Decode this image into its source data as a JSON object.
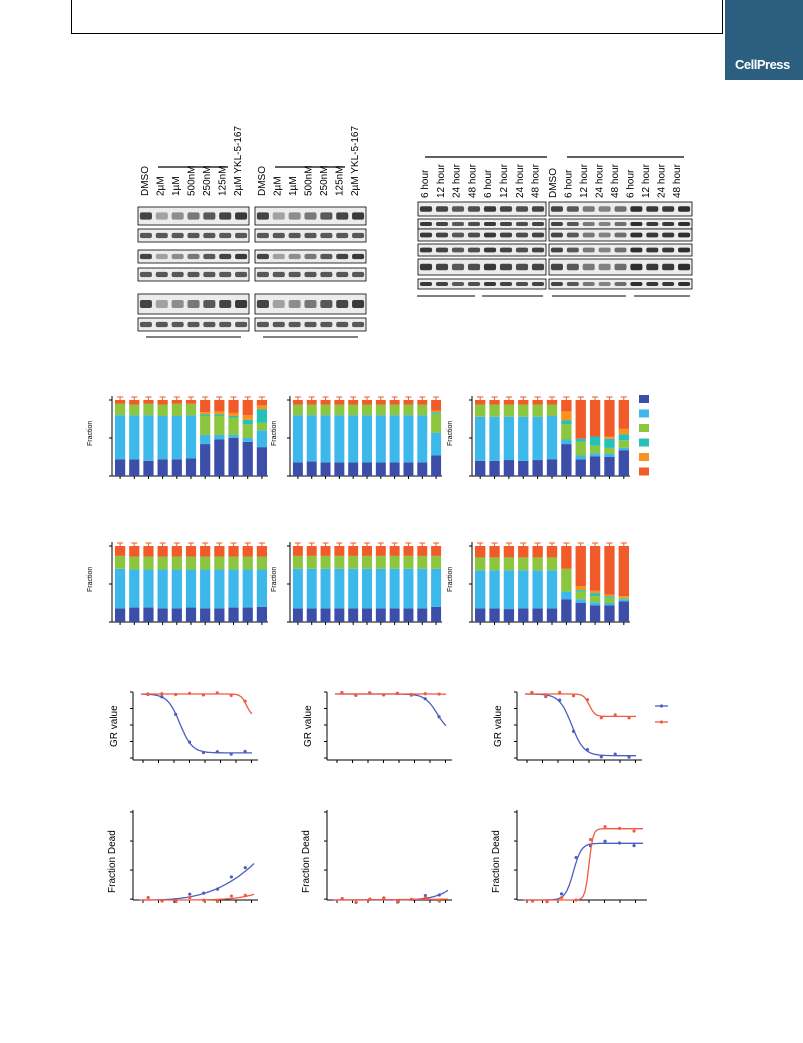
{
  "header": {
    "brand": "CellPress"
  },
  "westernA": {
    "lanes": [
      "DMSO",
      "2µM",
      "1µM",
      "500nM",
      "250nM",
      "125nM",
      "2µM YKL-5-167"
    ]
  },
  "westernB": {
    "left_lanes": [
      "6 hour",
      "12 hour",
      "24 hour",
      "48 hour",
      "6 hour",
      "12 hour",
      "24 hour",
      "48 hour"
    ],
    "right_lanes": [
      "DMSO",
      "6 hour",
      "12 hour",
      "24 hour",
      "48 hour",
      "6 hour",
      "12 hour",
      "24 hour",
      "48 hour"
    ]
  },
  "cellcycle": {
    "ylabel": "Fraction",
    "colors": [
      "#3d4ea8",
      "#3cb8ea",
      "#8cc63f",
      "#25c1b8",
      "#f7931e",
      "#f15a29"
    ],
    "panels": [
      {
        "bars": [
          [
            0.22,
            0.58,
            0.15,
            0.0,
            0.0,
            0.05
          ],
          [
            0.22,
            0.58,
            0.14,
            0.0,
            0.0,
            0.06
          ],
          [
            0.2,
            0.6,
            0.15,
            0.0,
            0.0,
            0.05
          ],
          [
            0.22,
            0.57,
            0.15,
            0.0,
            0.0,
            0.06
          ],
          [
            0.22,
            0.57,
            0.16,
            0.0,
            0.0,
            0.05
          ],
          [
            0.23,
            0.57,
            0.15,
            0.0,
            0.0,
            0.05
          ],
          [
            0.42,
            0.12,
            0.25,
            0.02,
            0.03,
            0.16
          ],
          [
            0.48,
            0.06,
            0.25,
            0.02,
            0.04,
            0.15
          ],
          [
            0.5,
            0.04,
            0.23,
            0.02,
            0.04,
            0.17
          ],
          [
            0.45,
            0.05,
            0.18,
            0.06,
            0.06,
            0.2
          ],
          [
            0.38,
            0.22,
            0.1,
            0.18,
            0.05,
            0.07
          ]
        ]
      },
      {
        "bars": [
          [
            0.18,
            0.62,
            0.14,
            0.0,
            0.0,
            0.06
          ],
          [
            0.19,
            0.61,
            0.14,
            0.0,
            0.0,
            0.06
          ],
          [
            0.18,
            0.62,
            0.14,
            0.0,
            0.0,
            0.06
          ],
          [
            0.18,
            0.62,
            0.14,
            0.0,
            0.0,
            0.06
          ],
          [
            0.18,
            0.62,
            0.14,
            0.0,
            0.0,
            0.06
          ],
          [
            0.18,
            0.62,
            0.14,
            0.0,
            0.0,
            0.06
          ],
          [
            0.18,
            0.62,
            0.14,
            0.0,
            0.0,
            0.06
          ],
          [
            0.18,
            0.62,
            0.14,
            0.0,
            0.0,
            0.06
          ],
          [
            0.18,
            0.62,
            0.14,
            0.0,
            0.0,
            0.06
          ],
          [
            0.18,
            0.62,
            0.14,
            0.0,
            0.0,
            0.06
          ],
          [
            0.27,
            0.3,
            0.25,
            0.02,
            0.02,
            0.14
          ]
        ]
      },
      {
        "bars": [
          [
            0.2,
            0.58,
            0.16,
            0.0,
            0.0,
            0.06
          ],
          [
            0.2,
            0.58,
            0.16,
            0.0,
            0.0,
            0.06
          ],
          [
            0.21,
            0.57,
            0.16,
            0.0,
            0.0,
            0.06
          ],
          [
            0.2,
            0.58,
            0.16,
            0.0,
            0.0,
            0.06
          ],
          [
            0.21,
            0.57,
            0.16,
            0.0,
            0.0,
            0.06
          ],
          [
            0.22,
            0.57,
            0.15,
            0.0,
            0.0,
            0.06
          ],
          [
            0.42,
            0.06,
            0.2,
            0.05,
            0.12,
            0.15
          ],
          [
            0.22,
            0.05,
            0.18,
            0.04,
            0.0,
            0.51
          ],
          [
            0.26,
            0.04,
            0.1,
            0.12,
            0.0,
            0.48
          ],
          [
            0.25,
            0.04,
            0.08,
            0.12,
            0.03,
            0.48
          ],
          [
            0.34,
            0.03,
            0.1,
            0.08,
            0.07,
            0.38
          ]
        ]
      },
      {
        "bars": [
          [
            0.18,
            0.52,
            0.17,
            0.0,
            0.0,
            0.13
          ],
          [
            0.19,
            0.5,
            0.17,
            0.0,
            0.0,
            0.14
          ],
          [
            0.19,
            0.5,
            0.17,
            0.0,
            0.0,
            0.14
          ],
          [
            0.18,
            0.51,
            0.17,
            0.0,
            0.0,
            0.14
          ],
          [
            0.18,
            0.51,
            0.17,
            0.0,
            0.0,
            0.14
          ],
          [
            0.19,
            0.5,
            0.17,
            0.0,
            0.0,
            0.14
          ],
          [
            0.18,
            0.51,
            0.17,
            0.0,
            0.0,
            0.14
          ],
          [
            0.18,
            0.51,
            0.17,
            0.0,
            0.0,
            0.14
          ],
          [
            0.19,
            0.5,
            0.17,
            0.0,
            0.0,
            0.14
          ],
          [
            0.19,
            0.5,
            0.17,
            0.0,
            0.0,
            0.14
          ],
          [
            0.2,
            0.49,
            0.17,
            0.0,
            0.0,
            0.14
          ]
        ]
      },
      {
        "bars": [
          [
            0.18,
            0.52,
            0.17,
            0.0,
            0.0,
            0.13
          ],
          [
            0.18,
            0.52,
            0.17,
            0.0,
            0.0,
            0.13
          ],
          [
            0.18,
            0.52,
            0.17,
            0.0,
            0.0,
            0.13
          ],
          [
            0.18,
            0.52,
            0.17,
            0.0,
            0.0,
            0.13
          ],
          [
            0.18,
            0.52,
            0.17,
            0.0,
            0.0,
            0.13
          ],
          [
            0.18,
            0.52,
            0.17,
            0.0,
            0.0,
            0.13
          ],
          [
            0.18,
            0.52,
            0.17,
            0.0,
            0.0,
            0.13
          ],
          [
            0.18,
            0.52,
            0.17,
            0.0,
            0.0,
            0.13
          ],
          [
            0.18,
            0.52,
            0.17,
            0.0,
            0.0,
            0.13
          ],
          [
            0.18,
            0.52,
            0.17,
            0.0,
            0.0,
            0.13
          ],
          [
            0.2,
            0.5,
            0.17,
            0.0,
            0.0,
            0.13
          ]
        ]
      },
      {
        "bars": [
          [
            0.18,
            0.5,
            0.17,
            0.0,
            0.0,
            0.15
          ],
          [
            0.18,
            0.5,
            0.17,
            0.0,
            0.0,
            0.15
          ],
          [
            0.17,
            0.51,
            0.17,
            0.0,
            0.0,
            0.15
          ],
          [
            0.18,
            0.5,
            0.17,
            0.0,
            0.0,
            0.15
          ],
          [
            0.18,
            0.5,
            0.17,
            0.0,
            0.0,
            0.15
          ],
          [
            0.18,
            0.5,
            0.17,
            0.0,
            0.0,
            0.15
          ],
          [
            0.3,
            0.1,
            0.3,
            0.0,
            0.0,
            0.3
          ],
          [
            0.25,
            0.05,
            0.1,
            0.02,
            0.05,
            0.53
          ],
          [
            0.22,
            0.04,
            0.08,
            0.04,
            0.03,
            0.59
          ],
          [
            0.22,
            0.03,
            0.07,
            0.02,
            0.02,
            0.64
          ],
          [
            0.27,
            0.03,
            0.02,
            0.0,
            0.02,
            0.66
          ]
        ]
      }
    ]
  },
  "gr": {
    "ylabel": "GR value",
    "colors": [
      "#4a5fc1",
      "#f15a40"
    ]
  },
  "dead": {
    "ylabel": "Fraction Dead",
    "colors": [
      "#4a5fc1",
      "#f15a40"
    ]
  }
}
